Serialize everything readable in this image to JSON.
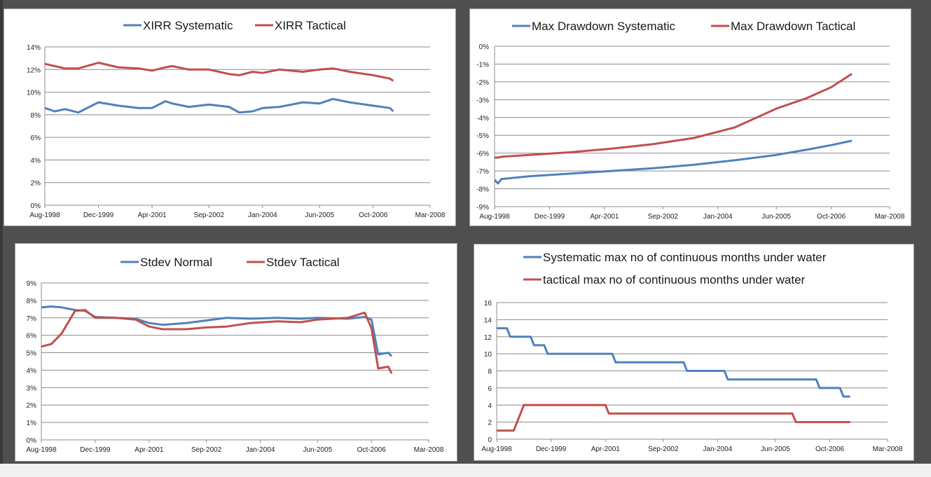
{
  "chart_data": [
    {
      "type": "line",
      "x_dates": [
        "1998-08",
        "1998-11",
        "1999-02",
        "1999-06",
        "1999-12",
        "2000-06",
        "2000-12",
        "2001-04",
        "2001-08",
        "2001-10",
        "2002-03",
        "2002-09",
        "2003-03",
        "2003-06",
        "2003-10",
        "2004-01",
        "2004-06",
        "2005-01",
        "2005-06",
        "2005-10",
        "2006-03",
        "2006-10",
        "2007-03",
        "2007-04"
      ],
      "series": [
        {
          "name": "XIRR Systematic",
          "color": "#4f81bd",
          "values": [
            8.6,
            8.3,
            8.5,
            8.2,
            9.1,
            8.8,
            8.6,
            8.6,
            9.2,
            9.0,
            8.7,
            8.9,
            8.7,
            8.2,
            8.3,
            8.6,
            8.7,
            9.1,
            9.0,
            9.4,
            9.1,
            8.8,
            8.6,
            8.3
          ]
        },
        {
          "name": "XIRR Tactical",
          "color": "#c0504d",
          "values": [
            12.5,
            12.3,
            12.1,
            12.1,
            12.6,
            12.2,
            12.1,
            11.9,
            12.2,
            12.3,
            12.0,
            12.0,
            11.6,
            11.5,
            11.8,
            11.7,
            12.0,
            11.8,
            12.0,
            12.1,
            11.8,
            11.5,
            11.2,
            11.0
          ]
        }
      ],
      "y_ticks": [
        "0%",
        "2%",
        "4%",
        "6%",
        "8%",
        "10%",
        "12%",
        "14%"
      ],
      "x_ticks": [
        "Aug-1998",
        "Dec-1999",
        "Apr-2001",
        "Sep-2002",
        "Jan-2004",
        "Jun-2005",
        "Oct-2006",
        "Mar-2008"
      ],
      "ylim": [
        0,
        14
      ],
      "legend_position": "top",
      "grid": true
    },
    {
      "type": "line",
      "x_dates": [
        "1998-08",
        "1998-09",
        "1998-10",
        "1999-06",
        "2000-06",
        "2001-06",
        "2002-06",
        "2003-06",
        "2004-06",
        "2005-06",
        "2006-03",
        "2006-10",
        "2007-04"
      ],
      "series": [
        {
          "name": "Max Drawdown Systematic",
          "color": "#4f81bd",
          "values": [
            -7.5,
            -7.7,
            -7.45,
            -7.3,
            -7.15,
            -7.0,
            -6.85,
            -6.65,
            -6.4,
            -6.1,
            -5.8,
            -5.55,
            -5.3
          ]
        },
        {
          "name": "Max Drawdown Tactical",
          "color": "#c0504d",
          "values": [
            -6.25,
            -6.25,
            -6.2,
            -6.1,
            -5.95,
            -5.75,
            -5.5,
            -5.15,
            -4.55,
            -3.5,
            -2.9,
            -2.3,
            -1.55
          ]
        }
      ],
      "y_ticks": [
        "0%",
        "-1%",
        "-2%",
        "-3%",
        "-4%",
        "-5%",
        "-6%",
        "-7%",
        "-8%",
        "-9%"
      ],
      "x_ticks": [
        "Aug-1998",
        "Dec-1999",
        "Apr-2001",
        "Sep-2002",
        "Jan-2004",
        "Jun-2005",
        "Oct-2006",
        "Mar-2008"
      ],
      "ylim": [
        -9,
        0
      ],
      "legend_position": "top",
      "grid": true
    },
    {
      "type": "line",
      "x_dates": [
        "1998-08",
        "1998-11",
        "1999-02",
        "1999-06",
        "1999-09",
        "1999-12",
        "2000-06",
        "2000-12",
        "2001-04",
        "2001-08",
        "2002-03",
        "2002-09",
        "2003-03",
        "2003-10",
        "2004-06",
        "2005-01",
        "2005-06",
        "2006-03",
        "2006-08",
        "2006-10",
        "2006-12",
        "2007-03",
        "2007-04"
      ],
      "series": [
        {
          "name": "Stdev Normal",
          "color": "#4f81bd",
          "values": [
            7.6,
            7.65,
            7.6,
            7.45,
            7.4,
            7.05,
            7.0,
            6.95,
            6.7,
            6.6,
            6.7,
            6.85,
            7.0,
            6.95,
            7.0,
            6.95,
            7.0,
            6.95,
            7.05,
            6.9,
            4.9,
            5.0,
            4.8
          ]
        },
        {
          "name": "Stdev Tactical",
          "color": "#c0504d",
          "values": [
            5.35,
            5.5,
            6.1,
            7.4,
            7.45,
            7.0,
            7.0,
            6.9,
            6.5,
            6.35,
            6.35,
            6.45,
            6.5,
            6.7,
            6.8,
            6.75,
            6.9,
            7.0,
            7.3,
            6.4,
            4.1,
            4.2,
            3.8
          ]
        }
      ],
      "y_ticks": [
        "0%",
        "1%",
        "2%",
        "3%",
        "4%",
        "5%",
        "6%",
        "7%",
        "8%",
        "9%"
      ],
      "x_ticks": [
        "Aug-1998",
        "Dec-1999",
        "Apr-2001",
        "Sep-2002",
        "Jan-2004",
        "Jun-2005",
        "Oct-2006",
        "Mar-2008"
      ],
      "ylim": [
        0,
        9
      ],
      "legend_position": "top",
      "grid": true
    },
    {
      "type": "line",
      "x_dates": [
        "1998-08",
        "1998-11",
        "1998-12",
        "1999-06",
        "1999-07",
        "1999-10",
        "1999-11",
        "2001-06",
        "2001-07",
        "2003-03",
        "2003-04",
        "2004-03",
        "2004-04",
        "2006-06",
        "2006-07",
        "2007-01",
        "2007-02",
        "2007-04"
      ],
      "series": [
        {
          "name": "Systematic max no of continuous months under water",
          "color": "#4f81bd",
          "values": [
            13,
            13,
            12,
            12,
            11,
            11,
            10,
            10,
            9,
            9,
            8,
            8,
            7,
            7,
            6,
            6,
            5,
            5
          ]
        }
      ],
      "series_b": {
        "name": "tactical max no of continuous months under water",
        "color": "#c0504d",
        "x_dates": [
          "1998-08",
          "1999-01",
          "1999-04",
          "2001-04",
          "2001-05",
          "2005-11",
          "2005-12",
          "2007-04"
        ],
        "values": [
          1,
          1,
          4,
          4,
          3,
          3,
          2,
          2
        ]
      },
      "y_ticks": [
        "0",
        "2",
        "4",
        "6",
        "8",
        "10",
        "12",
        "14",
        "16"
      ],
      "x_ticks": [
        "Aug-1998",
        "Dec-1999",
        "Apr-2001",
        "Sep-2002",
        "Jan-2004",
        "Jun-2005",
        "Oct-2006",
        "Mar-2008"
      ],
      "ylim": [
        0,
        16
      ],
      "legend_position": "top",
      "grid": true
    }
  ]
}
